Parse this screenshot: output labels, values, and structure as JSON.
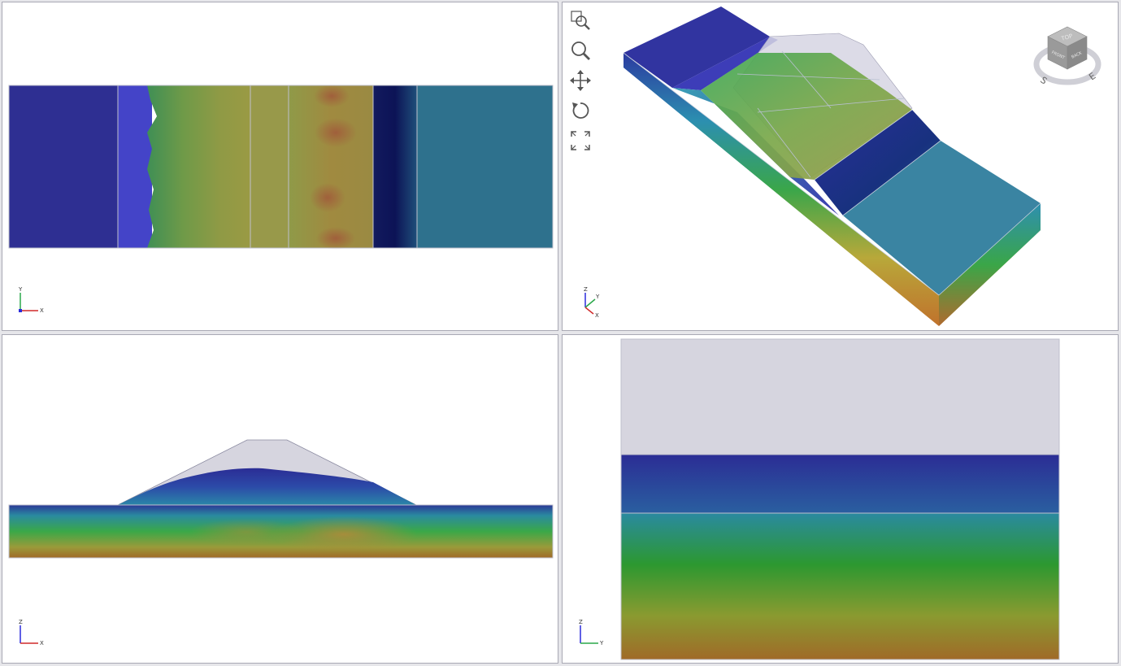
{
  "viewports": [
    {
      "id": "top",
      "triad_axes": [
        "Y",
        "X"
      ]
    },
    {
      "id": "iso",
      "triad_axes": [
        "Z",
        "Y",
        "X"
      ]
    },
    {
      "id": "front",
      "triad_axes": [
        "Z",
        "X"
      ]
    },
    {
      "id": "side",
      "triad_axes": [
        "Z",
        "Y"
      ]
    }
  ],
  "toolbar": {
    "tools": [
      {
        "name": "zoom-window",
        "icon": "zoom-window-icon"
      },
      {
        "name": "zoom",
        "icon": "magnifier-icon"
      },
      {
        "name": "pan",
        "icon": "move-arrows-icon"
      },
      {
        "name": "rotate",
        "icon": "rotate-icon"
      },
      {
        "name": "zoom-extents",
        "icon": "expand-corners-icon"
      }
    ]
  },
  "viewcube": {
    "faces": {
      "top": "TOP",
      "front": "FRONT",
      "right": "BACK"
    },
    "compass": {
      "south": "S",
      "east": "E"
    }
  },
  "colors": {
    "background": "#ffffff",
    "frame": "#a9a9b4",
    "material_navy": "#2e2f92",
    "material_teal": "#2e718d",
    "material_light": "#d6d5df",
    "gradient_low": "#2b2d95",
    "gradient_mid": "#2c9830",
    "gradient_high": "#a06a28"
  }
}
